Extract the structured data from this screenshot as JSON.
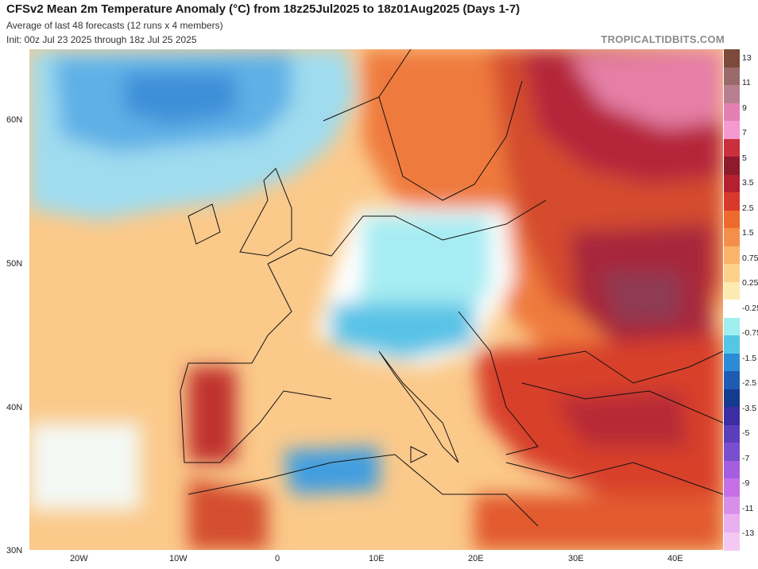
{
  "header": {
    "title": "CFSv2 Mean 2m Temperature Anomaly (°C) from 18z25Jul2025 to 18z01Aug2025 (Days 1-7)",
    "line2": "Average of last 48 forecasts (12 runs x 4 members)",
    "line3": "Init: 00z Jul 23 2025 through 18z Jul 25 2025",
    "brand": "TROPICALTIDBITS.COM"
  },
  "axes": {
    "lat_labels": [
      "60N",
      "50N",
      "40N",
      "30N"
    ],
    "lon_labels": [
      "20W",
      "10W",
      "0",
      "10E",
      "20E",
      "30E",
      "40E"
    ]
  },
  "colorbar": {
    "labels": [
      "13",
      "11",
      "9",
      "7",
      "5",
      "3.5",
      "2.5",
      "1.5",
      "0.75",
      "0.25",
      "-0.25",
      "-0.75",
      "-1.5",
      "-2.5",
      "-3.5",
      "-5",
      "-7",
      "-9",
      "-11",
      "-13"
    ],
    "colors": [
      "#7b4a3a",
      "#9a6a6a",
      "#b87f90",
      "#e37fb3",
      "#f49ad0",
      "#c9303c",
      "#8d1b2c",
      "#b3202f",
      "#d8392a",
      "#ee6a2c",
      "#f48f4a",
      "#f9b46a",
      "#fbd18c",
      "#fdeab0",
      "#ffffff",
      "#9feff0",
      "#55c7e5",
      "#2a8cd6",
      "#1d5bb5",
      "#153b8e",
      "#3b2da2",
      "#5a3fbb",
      "#7a4fcf",
      "#a45fe0",
      "#c76fe6",
      "#d98fe8",
      "#e9b0ef",
      "#f3c8f3"
    ]
  }
}
